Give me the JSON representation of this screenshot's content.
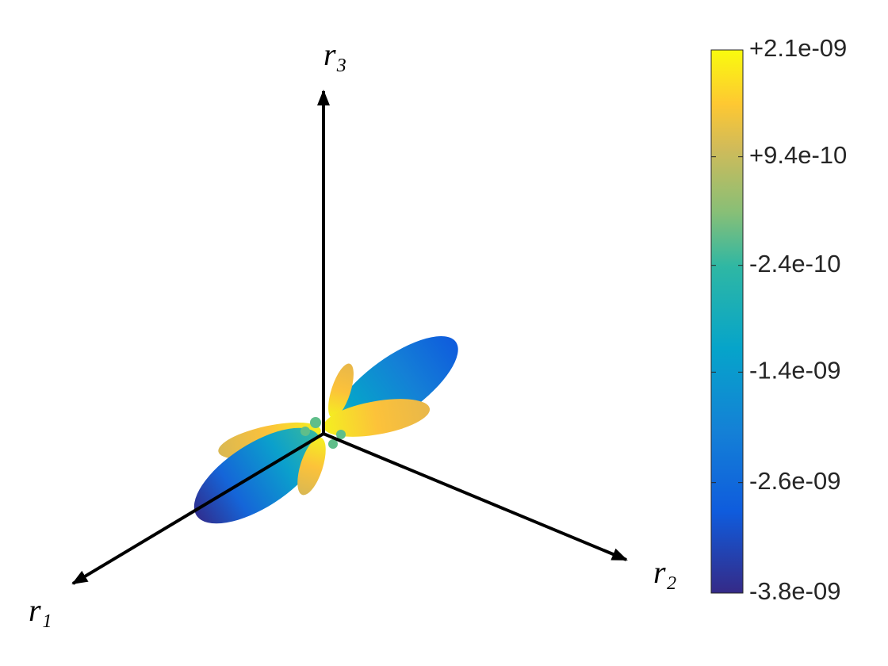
{
  "chart_data": {
    "type": "surface3d",
    "xlabel": "r₁",
    "ylabel": "r₂",
    "zlabel": "r₃",
    "colorbar": {
      "clim": [
        -3.8e-09,
        2.1e-09
      ],
      "ticks": [
        {
          "value": 2.1e-09,
          "label": "+2.1e-09"
        },
        {
          "value": 9.4e-10,
          "label": "+9.4e-10"
        },
        {
          "value": -2.4e-10,
          "label": "-2.4e-10"
        },
        {
          "value": -1.4e-09,
          "label": "-1.4e-09"
        },
        {
          "value": -2.6e-09,
          "label": "-2.6e-09"
        },
        {
          "value": -3.8e-09,
          "label": "-3.8e-09"
        }
      ],
      "colormap": "parula"
    }
  }
}
